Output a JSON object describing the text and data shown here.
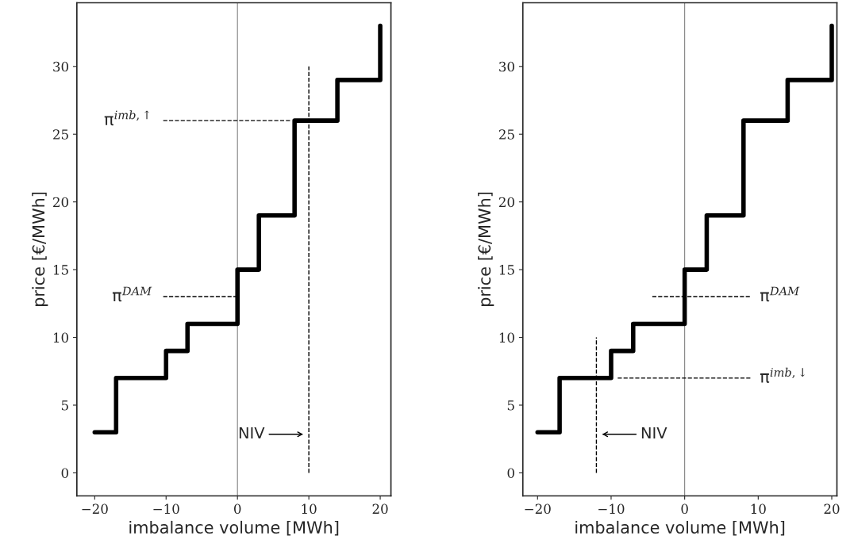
{
  "chart_data": [
    {
      "type": "step",
      "xlabel": "imbalance volume [MWh]",
      "ylabel": "price [€/MWh]",
      "xlim": [
        -22.5,
        21.5
      ],
      "ylim": [
        -1.7,
        34.7
      ],
      "xticks": [
        -20,
        -10,
        0,
        10,
        20
      ],
      "yticks": [
        0,
        5,
        10,
        15,
        20,
        25,
        30
      ],
      "grid": false,
      "legend": false,
      "series": [
        {
          "color": "#000000",
          "x": [
            -20,
            -17,
            -10,
            -7,
            0,
            3,
            8,
            14,
            20
          ],
          "values": [
            3,
            7,
            9,
            11,
            15,
            19,
            26,
            29,
            33
          ]
        },
        {
          "type": "line",
          "line_style": "dashed",
          "color": "#000000",
          "x": [
            -10.4,
            7.5
          ],
          "values": [
            26,
            26
          ]
        },
        {
          "type": "line",
          "line_style": "dashed",
          "color": "#000000",
          "x": [
            -10.4,
            0
          ],
          "values": [
            13,
            13
          ]
        },
        {
          "type": "line",
          "line_style": "dashed",
          "color": "#000000",
          "x": [
            10,
            10
          ],
          "values": [
            0,
            30
          ]
        }
      ],
      "ref_lines": [
        {
          "axis": "x",
          "value": 0,
          "color": "#808080"
        }
      ],
      "annotations": [
        "π$^{imb,↑}$",
        "π$^{DAM}$",
        "NIV"
      ]
    },
    {
      "type": "step",
      "xlabel": "imbalance volume [MWh]",
      "ylabel": "price [€/MWh]",
      "xlim": [
        -22,
        20.7
      ],
      "ylim": [
        -1.7,
        34.7
      ],
      "xticks": [
        -20,
        -10,
        0,
        10,
        20
      ],
      "yticks": [
        0,
        5,
        10,
        15,
        20,
        25,
        30
      ],
      "grid": false,
      "legend": false,
      "series": [
        {
          "color": "#000000",
          "x": [
            -20,
            -17,
            -10,
            -7,
            0,
            3,
            8,
            14,
            20
          ],
          "values": [
            3,
            7,
            9,
            11,
            15,
            19,
            26,
            29,
            33
          ]
        },
        {
          "type": "line",
          "line_style": "dashed",
          "color": "#000000",
          "x": [
            -4.4,
            9.0
          ],
          "values": [
            13,
            13
          ]
        },
        {
          "type": "line",
          "line_style": "dashed",
          "color": "#000000",
          "x": [
            -9.1,
            9.0
          ],
          "values": [
            7,
            7
          ]
        },
        {
          "type": "line",
          "line_style": "dashed",
          "color": "#000000",
          "x": [
            -12,
            -12
          ],
          "values": [
            0,
            10
          ]
        }
      ],
      "ref_lines": [
        {
          "axis": "x",
          "value": 0,
          "color": "#808080"
        }
      ],
      "annotations": [
        "π$^{DAM}$",
        "π$^{imb,↓}$",
        "NIV"
      ]
    }
  ]
}
